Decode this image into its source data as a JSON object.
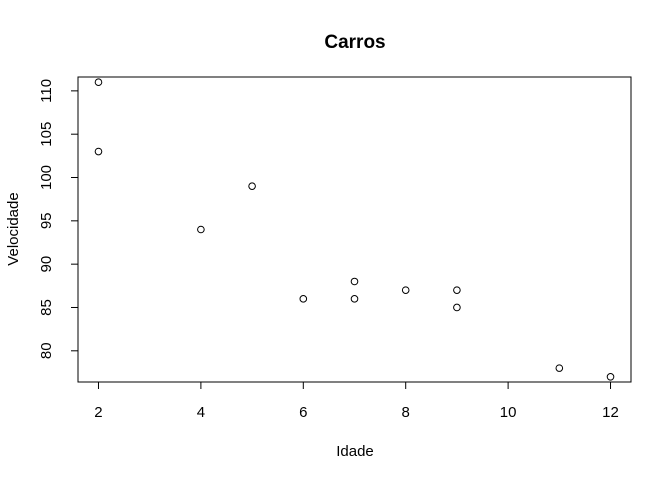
{
  "chart_data": {
    "type": "scatter",
    "title": "Carros",
    "xlabel": "Idade",
    "ylabel": "Velocidade",
    "xlim": [
      1.6,
      12.4
    ],
    "ylim": [
      76.4,
      111.6
    ],
    "xticks": [
      2,
      4,
      6,
      8,
      10,
      12
    ],
    "yticks": [
      80,
      85,
      90,
      95,
      100,
      105,
      110
    ],
    "grid": false,
    "marker": "open-circle",
    "point_color": "#000000",
    "points": [
      {
        "x": 2,
        "y": 111
      },
      {
        "x": 2,
        "y": 103
      },
      {
        "x": 4,
        "y": 94
      },
      {
        "x": 5,
        "y": 99
      },
      {
        "x": 6,
        "y": 86
      },
      {
        "x": 7,
        "y": 88
      },
      {
        "x": 7,
        "y": 86
      },
      {
        "x": 8,
        "y": 87
      },
      {
        "x": 9,
        "y": 87
      },
      {
        "x": 9,
        "y": 85
      },
      {
        "x": 11,
        "y": 78
      },
      {
        "x": 12,
        "y": 77
      }
    ]
  }
}
